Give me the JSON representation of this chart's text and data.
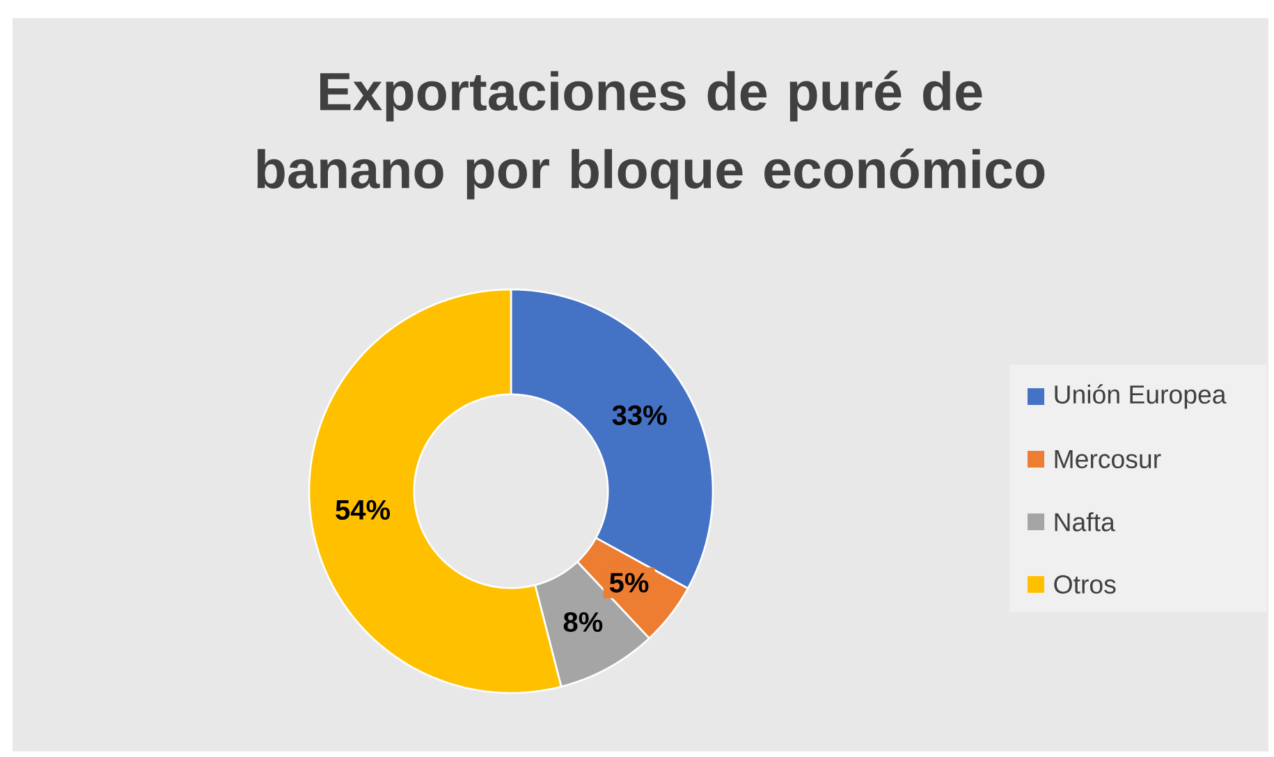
{
  "chart_data": {
    "type": "donut",
    "title": "Exportaciones de puré de banano por bloque económico",
    "categories": [
      "Unión Europea",
      "Mercosur",
      "Nafta",
      "Otros"
    ],
    "values": [
      33,
      5,
      8,
      54
    ],
    "colors": [
      "#4472c4",
      "#ed7d31",
      "#a5a5a5",
      "#ffc000"
    ],
    "value_labels": [
      "33%",
      "5%",
      "8%",
      "54%"
    ],
    "legend": "right"
  }
}
